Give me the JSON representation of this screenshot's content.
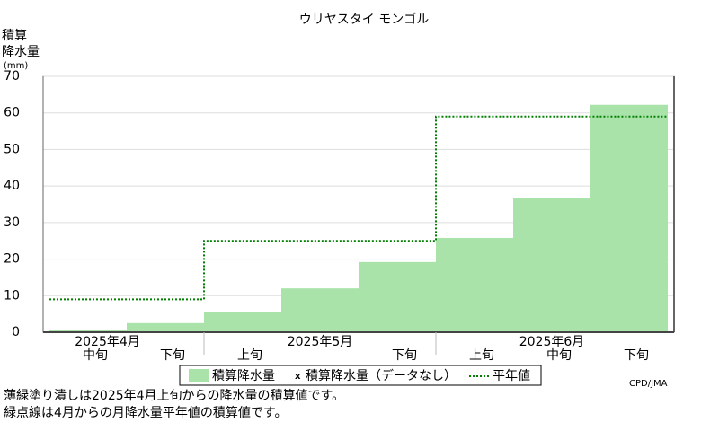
{
  "chart_data": {
    "type": "bar",
    "title": "ウリヤスタイ モンゴル",
    "y_label_lines": [
      "積算",
      "降水量",
      "(mm)"
    ],
    "categories": [
      "中旬",
      "下旬",
      "上旬",
      null,
      "下旬",
      "上旬",
      "中旬",
      "下旬"
    ],
    "month_labels": [
      "2025年4月",
      "2025年5月",
      "2025年6月"
    ],
    "series": [
      {
        "name": "積算降水量",
        "color": "#aae3aa",
        "values": [
          0.5,
          2.5,
          5.4,
          12,
          19.2,
          25.8,
          36.6,
          62.2
        ]
      },
      {
        "name": "平年値",
        "color": "#008000",
        "values": [
          9,
          9,
          25,
          25,
          25,
          59,
          59,
          59
        ]
      }
    ],
    "legend_nodata": "積算降水量（データなし）",
    "ylim": [
      0,
      70
    ],
    "yticks": [
      0,
      10,
      20,
      30,
      40,
      50,
      60,
      70
    ],
    "grid": true,
    "notes": [
      "薄緑塗り潰しは2025年4月上旬からの降水量の積算値です。",
      "緑点線は4月からの月降水量平年値の積算値です。"
    ],
    "credit": "CPD/JMA"
  }
}
